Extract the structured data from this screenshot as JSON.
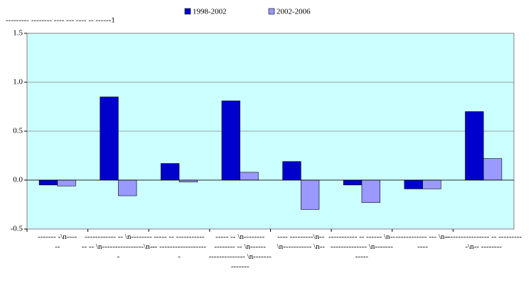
{
  "chart_data": {
    "type": "bar",
    "subtitle": "--------- -------- ---- --- ---- -- ------1",
    "categories": [
      "------- -\\n----\n--",
      "------------ -- \\n--------\n-- -- \\n----------------\\n--\n-",
      "----- -- -----------\n-- ------------------\n-",
      "----- -- \\n--------\n-------- -- \\n------\n-------------- \\n-------\n-------",
      "---- ---------\\n--\n\\n----------- \\n--",
      "----------- -- ------ \\n--\n-------------- \\n-------\n-----",
      "------------ --- \\n--\n----",
      "----------------- -- ---------\n-\\n-- --------"
    ],
    "series": [
      {
        "name": "1998-2002",
        "color": "#0000cc",
        "values": [
          -0.05,
          0.85,
          0.17,
          0.81,
          0.19,
          -0.05,
          -0.09,
          0.7
        ]
      },
      {
        "name": "2002-2006",
        "color": "#9999ff",
        "values": [
          -0.06,
          -0.16,
          -0.02,
          0.08,
          -0.3,
          -0.23,
          -0.09,
          0.22
        ]
      }
    ],
    "ylim": [
      -0.5,
      1.5
    ],
    "yticks": [
      -0.5,
      {
        "value": 0,
        "label": "0.0"
      },
      0.5,
      {
        "value": 1,
        "label": "1.0"
      },
      1.5
    ],
    "grid": true,
    "legend": "top"
  }
}
